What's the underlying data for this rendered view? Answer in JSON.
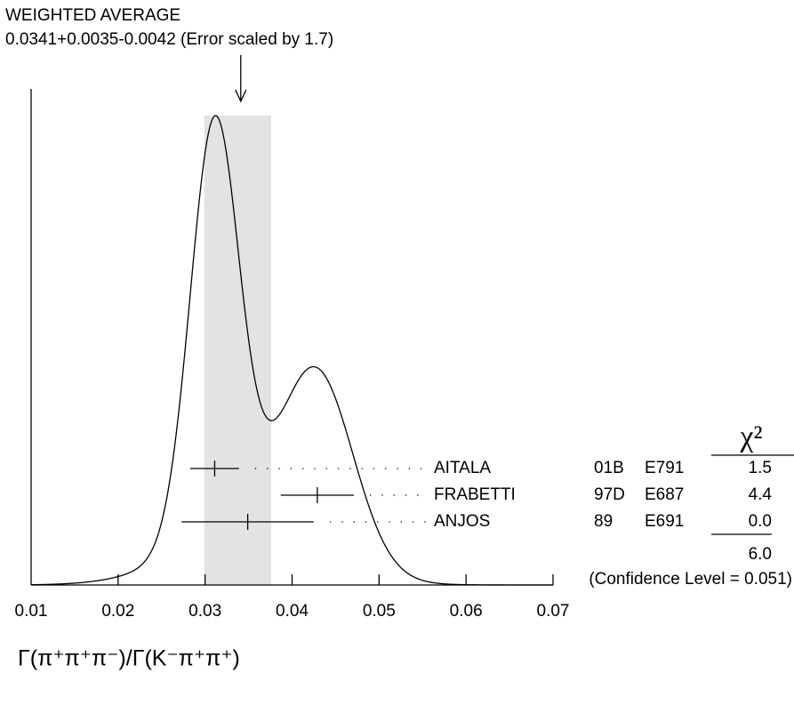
{
  "chart_data": {
    "type": "ideogram",
    "title": "WEIGHTED AVERAGE",
    "subtitle": "0.0341+0.0035-0.0042 (Error scaled by 1.7)",
    "weighted_average": {
      "value": 0.0341,
      "error_plus": 0.0035,
      "error_minus": 0.0042
    },
    "xlabel": "Γ(π⁺π⁺π⁻)/Γ(K⁻π⁺π⁺)",
    "xlim": [
      0.01,
      0.07
    ],
    "xticks": [
      0.01,
      0.02,
      0.03,
      0.04,
      0.05,
      0.06,
      0.07
    ],
    "chi2_header": "χ²",
    "measurements": [
      {
        "name": "AITALA",
        "year": "01B",
        "experiment": "E791",
        "value": 0.0311,
        "error": 0.0028,
        "chi2": 1.5
      },
      {
        "name": "FRABETTI",
        "year": "97D",
        "experiment": "E687",
        "value": 0.0429,
        "error": 0.0042,
        "chi2": 4.4
      },
      {
        "name": "ANJOS",
        "year": "89",
        "experiment": "E691",
        "value": 0.0349,
        "error": 0.0076,
        "chi2": 0,
        "chi2_label": "0.0"
      }
    ],
    "chi2_total": 6,
    "chi2_total_label": "6.0",
    "confidence_text": "(Confidence Level = 0.051)"
  }
}
